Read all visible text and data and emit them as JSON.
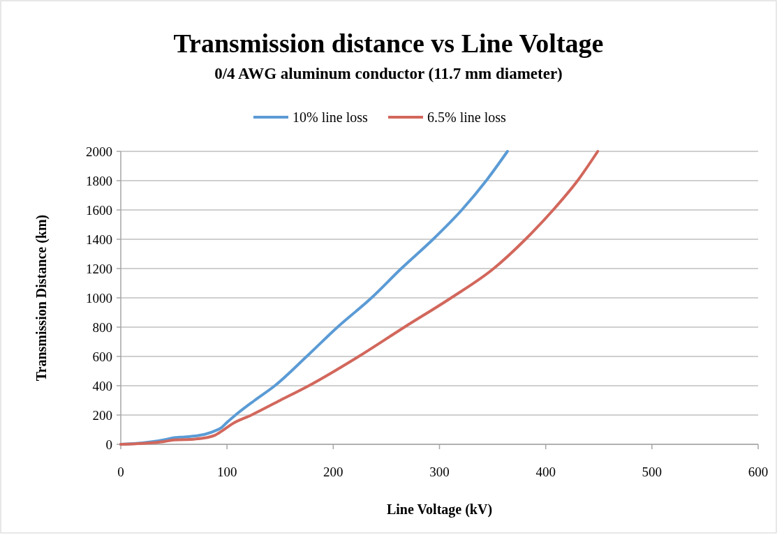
{
  "chart_data": {
    "type": "line",
    "title": "Transmission distance vs Line Voltage",
    "subtitle": "0/4 AWG aluminum conductor (11.7 mm diameter)",
    "xlabel": "Line Voltage (kV)",
    "ylabel": "Transmission Distance (km)",
    "xlim": [
      0,
      600
    ],
    "xticks": [
      0,
      100,
      200,
      300,
      400,
      500,
      600
    ],
    "ylim": [
      0,
      2000
    ],
    "yticks": [
      0,
      200,
      400,
      600,
      800,
      1000,
      1200,
      1400,
      1600,
      1800,
      2000
    ],
    "grid": "y",
    "legend": "top",
    "marker": "none",
    "line_style": "solid",
    "series": [
      {
        "name": "10% line loss",
        "color": "#5b9bd5",
        "x": [
          0,
          20,
          40,
          50,
          60,
          70,
          80,
          88,
          95,
          100,
          108,
          126,
          145,
          175,
          204,
          236,
          264,
          294,
          321,
          344,
          364
        ],
        "values": [
          0,
          10,
          30,
          45,
          50,
          57,
          70,
          90,
          115,
          150,
          200,
          300,
          400,
          600,
          800,
          1000,
          1200,
          1400,
          1600,
          1800,
          2000
        ]
      },
      {
        "name": "6.5% line loss",
        "color": "#d2675c",
        "x": [
          0,
          20,
          40,
          50,
          60,
          70,
          80,
          88,
          95,
          105,
          123,
          150,
          177,
          224,
          267,
          311,
          351,
          381,
          407,
          430,
          449
        ],
        "values": [
          0,
          6,
          18,
          30,
          32,
          36,
          45,
          60,
          90,
          140,
          200,
          300,
          400,
          600,
          800,
          1000,
          1200,
          1400,
          1600,
          1800,
          2000
        ]
      }
    ]
  }
}
